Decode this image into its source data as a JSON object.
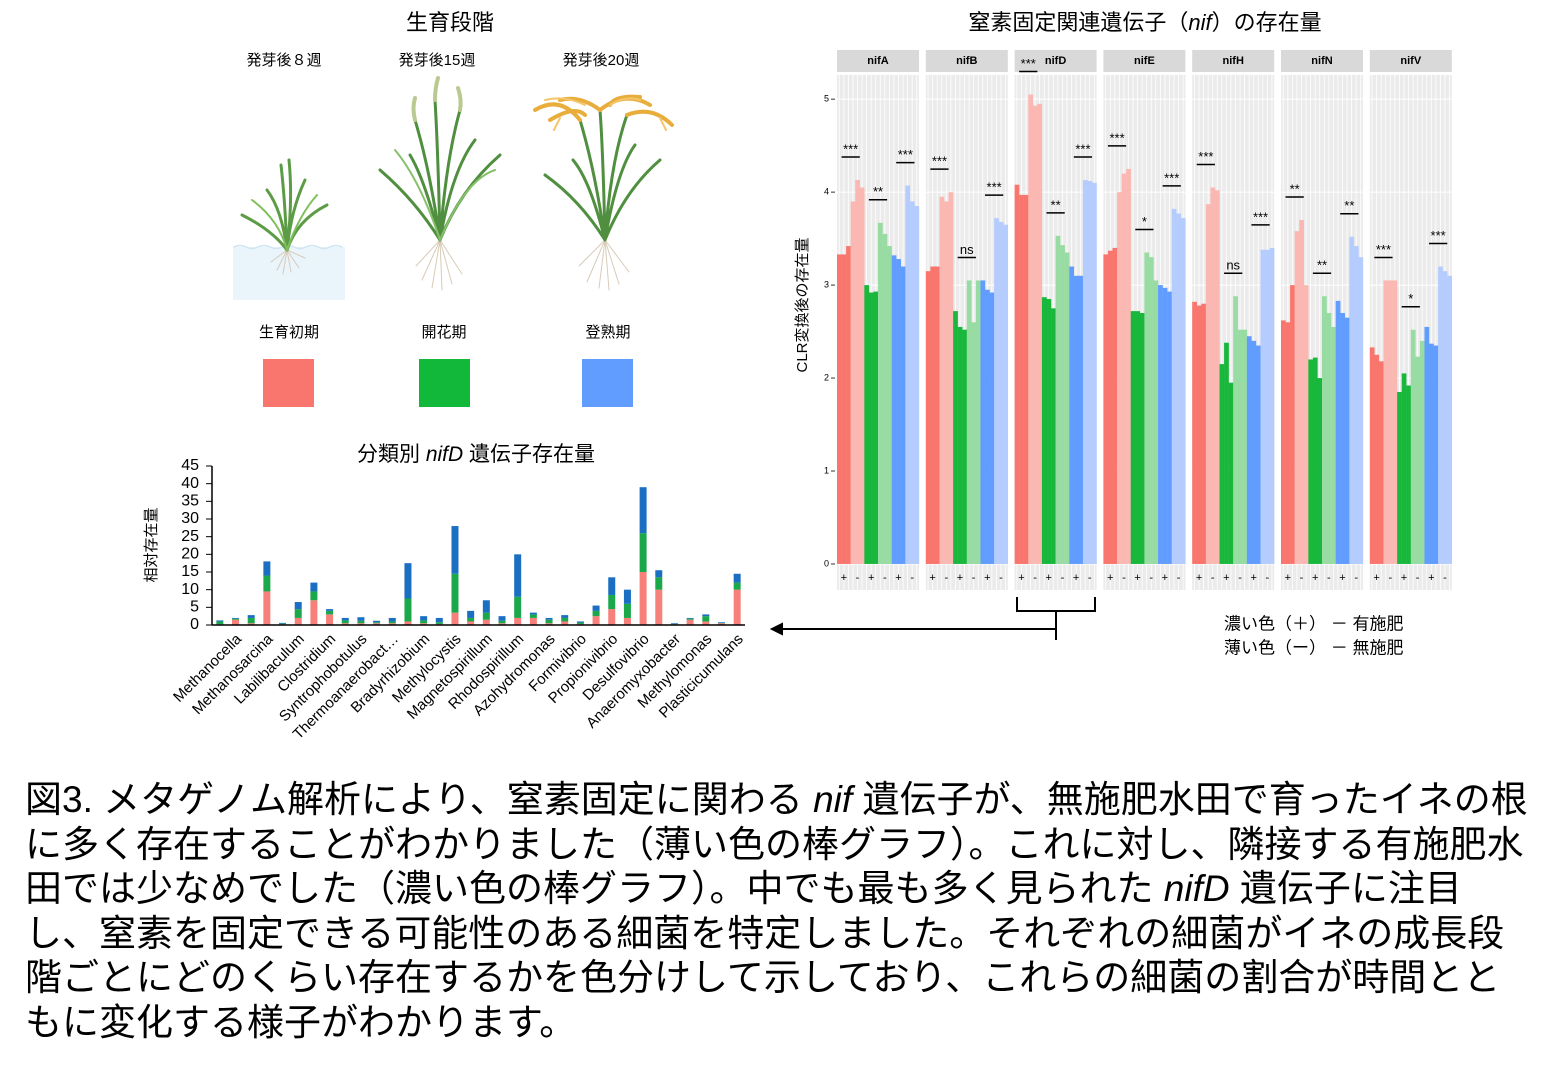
{
  "stages": {
    "title": "生育段階",
    "weeks": [
      "発芽後８週",
      "発芽後15週",
      "発芽後20週"
    ],
    "colors": [
      "#f8766d",
      "#12b83a",
      "#619cff"
    ]
  },
  "chart_data": [
    {
      "type": "bar",
      "stacked": true,
      "title": [
        {
          "text": "分類別 "
        },
        {
          "text": "nifD",
          "italic": true
        },
        {
          "text": " 遺伝子存在量"
        }
      ],
      "ylabel": "相対存在量",
      "categories": [
        null,
        "Methanocella",
        null,
        "Methanosarcina",
        null,
        "Labilibaculum",
        null,
        "Clostridium",
        null,
        "Syntrophobotulus",
        null,
        "Thermoanaerobact…",
        null,
        "Bradyrhizobium",
        null,
        "Methylocystis",
        null,
        "Magnetospirillum",
        null,
        "Rhodospirillum",
        null,
        "Azohydromonas",
        null,
        "Formivibrio",
        null,
        "Propionivibrio",
        null,
        "Desulfovibrio",
        null,
        "Anaeromyxobacter",
        null,
        "Methylomonas",
        null,
        "Plasticicumulans"
      ],
      "series": [
        {
          "name": "生育初期",
          "color": "#f8807a",
          "values": [
            0.2,
            1.5,
            0.5,
            9.5,
            0.2,
            2,
            7,
            3,
            0.5,
            0.5,
            0.5,
            0.5,
            1,
            0.5,
            0.3,
            3.5,
            1,
            1.5,
            0.5,
            2,
            2,
            0.5,
            1,
            0.3,
            2.5,
            4.5,
            2,
            15,
            10,
            0.2,
            1.5,
            1,
            0.5,
            10
          ]
        },
        {
          "name": "開花期",
          "color": "#1aa84b",
          "values": [
            0.8,
            0.3,
            1.5,
            4.5,
            0.2,
            2.5,
            2.5,
            1,
            0.8,
            0.7,
            0.3,
            0.5,
            6.5,
            0.8,
            0.5,
            11,
            1,
            2,
            0.7,
            6,
            1,
            1,
            1,
            0.4,
            1.5,
            4,
            4,
            11,
            3.5,
            0.1,
            0.3,
            1.5,
            0.1,
            2
          ]
        },
        {
          "name": "登熟期",
          "color": "#1a6fc2",
          "values": [
            0.3,
            0.2,
            0.8,
            4,
            0.2,
            2,
            2.5,
            0.5,
            0.7,
            1,
            0.4,
            1,
            10,
            1.2,
            1.2,
            13.5,
            2,
            3.5,
            1.3,
            12,
            0.5,
            0.5,
            0.8,
            0.3,
            1.5,
            5,
            4,
            13,
            2,
            0.2,
            0.2,
            0.5,
            0.2,
            2.5
          ]
        }
      ],
      "ylim": [
        0,
        45
      ],
      "yticks": [
        0,
        5,
        10,
        15,
        20,
        25,
        30,
        35,
        40,
        45
      ]
    },
    {
      "type": "bar",
      "title": [
        {
          "text": "窒素固定関連遺伝子（"
        },
        {
          "text": "nif",
          "italic": true
        },
        {
          "text": "）の存在量"
        }
      ],
      "ylabel": "CLR変換後の存在量",
      "x_labels": [
        "+",
        "-",
        "+",
        "-",
        "+",
        "-"
      ],
      "colors": [
        "#f8766d",
        "#fbb8b3",
        "#19b83c",
        "#98dca3",
        "#619cff",
        "#b5ccff"
      ],
      "ylim": [
        -0.28,
        5.26
      ],
      "yticks": [
        0,
        1,
        2,
        3,
        4,
        5
      ],
      "grid": true,
      "facets": [
        {
          "name": "nifA",
          "values": [
            [
              3.33,
              3.33,
              3.42
            ],
            [
              3.9,
              4.13,
              4.05
            ],
            [
              3.0,
              2.92,
              2.93
            ],
            [
              3.67,
              3.55,
              3.42
            ],
            [
              3.32,
              3.28,
              3.2
            ],
            [
              4.07,
              3.9,
              3.85
            ]
          ],
          "significance": [
            "***",
            "**",
            "***"
          ]
        },
        {
          "name": "nifB",
          "values": [
            [
              3.15,
              3.2,
              3.2
            ],
            [
              3.95,
              3.9,
              4.0
            ],
            [
              2.72,
              2.55,
              2.52
            ],
            [
              3.05,
              2.6,
              3.05
            ],
            [
              3.05,
              2.95,
              2.92
            ],
            [
              3.72,
              3.68,
              3.65
            ]
          ],
          "significance": [
            "***",
            "ns",
            "***"
          ]
        },
        {
          "name": "nifD",
          "values": [
            [
              4.08,
              3.97,
              3.97
            ],
            [
              5.05,
              4.93,
              4.95
            ],
            [
              2.87,
              2.85,
              2.75
            ],
            [
              3.53,
              3.43,
              3.35
            ],
            [
              3.2,
              3.1,
              3.1
            ],
            [
              4.13,
              4.12,
              4.1
            ]
          ],
          "significance": [
            "***",
            "**",
            "***"
          ]
        },
        {
          "name": "nifE",
          "values": [
            [
              3.33,
              3.37,
              3.4
            ],
            [
              4.0,
              4.2,
              4.25
            ],
            [
              2.72,
              2.72,
              2.7
            ],
            [
              3.35,
              3.3,
              3.05
            ],
            [
              3.0,
              2.97,
              2.93
            ],
            [
              3.82,
              3.77,
              3.72
            ]
          ],
          "significance": [
            "***",
            "*",
            "***"
          ]
        },
        {
          "name": "nifH",
          "values": [
            [
              2.82,
              2.78,
              2.8
            ],
            [
              3.87,
              4.05,
              4.02
            ],
            [
              2.15,
              2.38,
              1.95
            ],
            [
              2.88,
              2.52,
              2.52
            ],
            [
              2.45,
              2.4,
              2.35
            ],
            [
              3.38,
              3.38,
              3.4
            ]
          ],
          "significance": [
            "***",
            "ns",
            "***"
          ]
        },
        {
          "name": "nifN",
          "values": [
            [
              2.62,
              2.6,
              3.0
            ],
            [
              3.58,
              3.7,
              3.0
            ],
            [
              2.2,
              2.22,
              2.0
            ],
            [
              2.88,
              2.7,
              2.55
            ],
            [
              2.83,
              2.7,
              2.65
            ],
            [
              3.52,
              3.42,
              3.3
            ]
          ],
          "significance": [
            "**",
            "**",
            "**"
          ]
        },
        {
          "name": "nifV",
          "values": [
            [
              2.33,
              2.25,
              2.18
            ],
            [
              3.05,
              3.05,
              3.05
            ],
            [
              1.85,
              2.05,
              1.92
            ],
            [
              2.52,
              2.23,
              2.4
            ],
            [
              2.55,
              2.37,
              2.35
            ],
            [
              3.2,
              3.15,
              3.1
            ]
          ],
          "significance": [
            "***",
            "*",
            "***"
          ]
        }
      ]
    }
  ],
  "fertilizer_legend": [
    "濃い色（＋） － 有施肥",
    "薄い色（ー） － 無施肥"
  ],
  "caption": [
    {
      "text": "図3. メタゲノム解析により、窒素固定に関わる "
    },
    {
      "text": "nif",
      "italic": true
    },
    {
      "text": " 遺伝子が、無施肥水田で育ったイネの根に多く存在することがわかりました（薄い色の棒グラフ）。これに対し、隣接する有施肥水田では少なめでした（濃い色の棒グラフ）。中でも最も多く見られた "
    },
    {
      "text": "nifD",
      "italic": true
    },
    {
      "text": " 遺伝子に注目し、窒素を固定できる可能性のある細菌を特定しました。それぞれの細菌がイネの成長段階ごとにどのくらい存在するかを色分けして示しており、これらの細菌の割合が時間とともに変化する様子がわかります。"
    }
  ]
}
